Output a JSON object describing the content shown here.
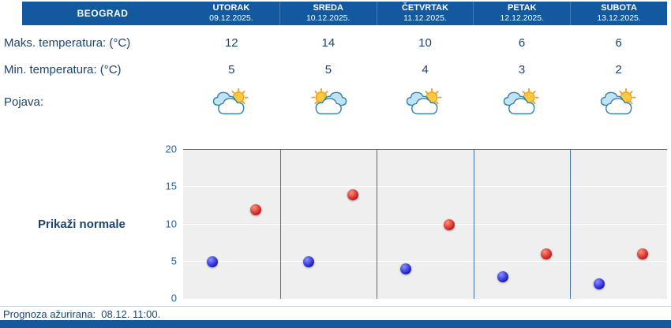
{
  "colors": {
    "bar_blue": "#12599f",
    "text_navy": "#1d4370",
    "axis_blue": "#2563a0",
    "plot_background": "#efefef",
    "separator_blue": "#4272a3",
    "min_dot_blue": "#1414c8",
    "max_dot_red": "#c41414"
  },
  "header": {
    "city": "BEOGRAD",
    "days": [
      {
        "name": "UTORAK",
        "date": "09.12.2025."
      },
      {
        "name": "SREDA",
        "date": "10.12.2025."
      },
      {
        "name": "ČETVRTAK",
        "date": "11.12.2025."
      },
      {
        "name": "PETAK",
        "date": "12.12.2025."
      },
      {
        "name": "SUBOTA",
        "date": "13.12.2025."
      }
    ]
  },
  "rows": {
    "max_label": "Maks. temperatura: (°C)",
    "min_label": "Min. temperatura: (°C)",
    "pojava_label": "Pojava:",
    "max_values": [
      12,
      14,
      10,
      6,
      6
    ],
    "min_values": [
      5,
      5,
      4,
      3,
      2
    ],
    "icons": [
      "sun-behind-clouds",
      "sun-behind-clouds-left",
      "sun-behind-clouds",
      "sun-behind-clouds",
      "sun-behind-clouds"
    ]
  },
  "normals_label": "Prikaži normale",
  "footer": {
    "updated_text": "Prognoza ažurirana:  08.12. 11:00."
  },
  "chart_data": {
    "type": "scatter",
    "categories": [
      "UTORAK 09.12.2025.",
      "SREDA 10.12.2025.",
      "ČETVRTAK 11.12.2025.",
      "PETAK 12.12.2025.",
      "SUBOTA 13.12.2025."
    ],
    "series": [
      {
        "id": "min-temp",
        "name": "Min. temperatura (°C)",
        "color": "#1414c8",
        "highlight": "#8890ff",
        "values": [
          5,
          5,
          4,
          3,
          2
        ],
        "x_offset": 0.3
      },
      {
        "id": "max-temp",
        "name": "Maks. temperatura (°C)",
        "color": "#c41414",
        "highlight": "#ff9078",
        "values": [
          12,
          14,
          10,
          6,
          6
        ],
        "x_offset": 0.75
      }
    ],
    "ylim": [
      0,
      20
    ],
    "yticks": [
      0,
      5,
      10,
      15,
      20
    ],
    "grid": true,
    "legend": "none",
    "title": "",
    "xlabel": "",
    "ylabel": ""
  }
}
